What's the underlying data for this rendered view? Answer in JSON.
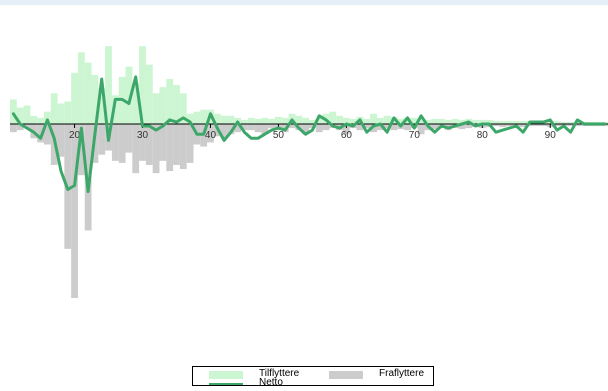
{
  "chart_data": {
    "type": "bar",
    "x_ticks": [
      20,
      30,
      40,
      50,
      60,
      70,
      80,
      90
    ],
    "xlim": [
      11,
      98
    ],
    "ylim": [
      -190,
      80
    ],
    "x": [
      11,
      12,
      13,
      14,
      15,
      16,
      17,
      18,
      19,
      20,
      21,
      22,
      23,
      24,
      25,
      26,
      27,
      28,
      29,
      30,
      31,
      32,
      33,
      34,
      35,
      36,
      37,
      38,
      39,
      40,
      41,
      42,
      43,
      44,
      45,
      46,
      47,
      48,
      49,
      50,
      51,
      52,
      53,
      54,
      55,
      56,
      57,
      58,
      59,
      60,
      61,
      62,
      63,
      64,
      65,
      66,
      67,
      68,
      69,
      70,
      71,
      72,
      73,
      74,
      75,
      76,
      77,
      78,
      79,
      80,
      81,
      82,
      83,
      84,
      85,
      86,
      87,
      88,
      89,
      90,
      91,
      92,
      93,
      94,
      95,
      96,
      97,
      98
    ],
    "series": [
      {
        "name": "Tilflyttere",
        "color": "#ccf5d2",
        "values": [
          24,
          16,
          18,
          8,
          6,
          12,
          30,
          20,
          22,
          50,
          70,
          60,
          48,
          35,
          76,
          28,
          46,
          56,
          40,
          76,
          58,
          30,
          36,
          44,
          38,
          30,
          10,
          12,
          14,
          14,
          10,
          8,
          8,
          6,
          4,
          6,
          5,
          6,
          5,
          7,
          6,
          10,
          8,
          6,
          4,
          6,
          10,
          12,
          8,
          6,
          5,
          7,
          5,
          10,
          6,
          8,
          7,
          5,
          6,
          6,
          5,
          4,
          5,
          5,
          4,
          5,
          4,
          5,
          4,
          4,
          4,
          3,
          3,
          3,
          3,
          3,
          3,
          3,
          3,
          3,
          3,
          2,
          2,
          2,
          2,
          2,
          2,
          2
        ]
      },
      {
        "name": "Fraflyttere",
        "color": "#cccccc",
        "values": [
          -8,
          -6,
          -4,
          -14,
          -18,
          -20,
          -40,
          -32,
          -122,
          -170,
          -50,
          -104,
          -38,
          -30,
          -26,
          -36,
          -38,
          -28,
          -48,
          -36,
          -40,
          -48,
          -36,
          -46,
          -40,
          -44,
          -38,
          -20,
          -22,
          -18,
          -12,
          -14,
          -10,
          -8,
          -6,
          -6,
          -8,
          -10,
          -4,
          -6,
          -8,
          -4,
          -6,
          -10,
          -4,
          -8,
          -6,
          -4,
          -6,
          -10,
          -4,
          -6,
          -4,
          -8,
          -6,
          -4,
          -6,
          -5,
          -6,
          -4,
          -10,
          -6,
          -5,
          -4,
          -6,
          -4,
          -5,
          -4,
          -3,
          -4,
          -3,
          -2,
          -3,
          -2,
          -3,
          -3,
          -2,
          -2,
          -2,
          -3,
          -2,
          -2,
          -2,
          -2,
          -2,
          -2,
          -2,
          -2
        ]
      },
      {
        "name": "Netto",
        "color": "#3da76a",
        "values": [
          10,
          0,
          -4,
          -8,
          -14,
          4,
          -14,
          -46,
          -64,
          -60,
          -4,
          -66,
          -10,
          44,
          -16,
          24,
          24,
          20,
          46,
          -2,
          -2,
          -6,
          -2,
          4,
          2,
          6,
          2,
          -10,
          -10,
          10,
          -4,
          -16,
          -8,
          2,
          -8,
          -14,
          -14,
          -10,
          -6,
          -4,
          -6,
          4,
          -4,
          -10,
          -6,
          8,
          4,
          -2,
          -4,
          0,
          -2,
          4,
          -8,
          -2,
          0,
          -8,
          6,
          -2,
          6,
          -4,
          8,
          -2,
          -8,
          -2,
          -4,
          -2,
          0,
          2,
          -2,
          0,
          0,
          -8,
          -6,
          -4,
          -2,
          -8,
          2,
          2,
          2,
          4,
          -6,
          -2,
          -8,
          4,
          0,
          0,
          0,
          0
        ]
      }
    ],
    "title": "",
    "xlabel": "",
    "ylabel": "",
    "grid": false,
    "legend_position": "bottom-center"
  },
  "legend": {
    "tilflyttere": "Tilflyttere",
    "fraflyttere": "Fraflyttere",
    "netto": "Netto"
  }
}
